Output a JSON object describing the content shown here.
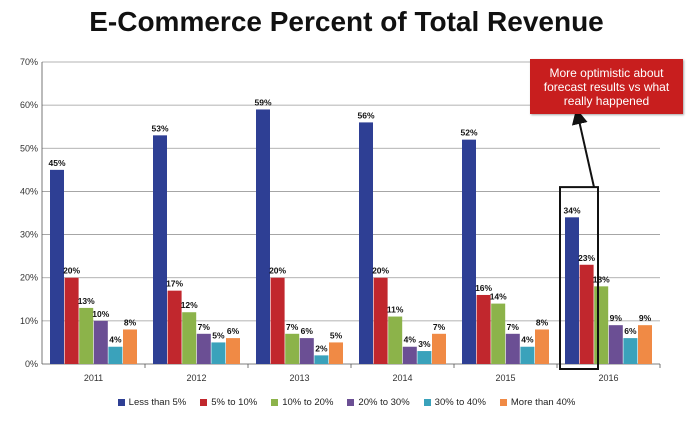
{
  "chart_data": {
    "type": "bar",
    "title": "E-Commerce Percent of Total Revenue",
    "xlabel": "",
    "ylabel": "",
    "categories": [
      "2011",
      "2012",
      "2013",
      "2014",
      "2015",
      "2016"
    ],
    "ylim": [
      0,
      70
    ],
    "yticks": [
      "0%",
      "10%",
      "20%",
      "30%",
      "40%",
      "50%",
      "60%",
      "70%"
    ],
    "grid": true,
    "legend_position": "bottom",
    "series": [
      {
        "name": "Less than 5%",
        "color": "#2e3f94",
        "values": [
          45,
          53,
          59,
          56,
          52,
          34
        ],
        "labels": [
          "45%",
          "53%",
          "59%",
          "56%",
          "52%",
          "34%"
        ]
      },
      {
        "name": "5% to 10%",
        "color": "#c1272d",
        "values": [
          20,
          17,
          20,
          20,
          16,
          23
        ],
        "labels": [
          "20%",
          "17%",
          "20%",
          "20%",
          "16%",
          "23%"
        ]
      },
      {
        "name": "10% to 20%",
        "color": "#8cb34a",
        "values": [
          13,
          12,
          7,
          11,
          14,
          18
        ],
        "labels": [
          "13%",
          "12%",
          "7%",
          "11%",
          "14%",
          "18%"
        ]
      },
      {
        "name": "20% to 30%",
        "color": "#6b4f94",
        "values": [
          10,
          7,
          6,
          4,
          7,
          9
        ],
        "labels": [
          "10%",
          "7%",
          "6%",
          "4%",
          "7%",
          "9%"
        ]
      },
      {
        "name": "30% to 40%",
        "color": "#3aa2bb",
        "values": [
          4,
          5,
          2,
          3,
          4,
          6
        ],
        "labels": [
          "4%",
          "5%",
          "2%",
          "3%",
          "4%",
          "6%"
        ]
      },
      {
        "name": "More than 40%",
        "color": "#f08a45",
        "values": [
          8,
          6,
          5,
          7,
          8,
          9
        ],
        "labels": [
          "8%",
          "6%",
          "5%",
          "7%",
          "8%",
          "9%"
        ]
      }
    ],
    "annotations": [
      {
        "text": "More optimistic about forecast results vs what really happened",
        "category": "2016",
        "box_color": "#c81e1e"
      }
    ]
  }
}
